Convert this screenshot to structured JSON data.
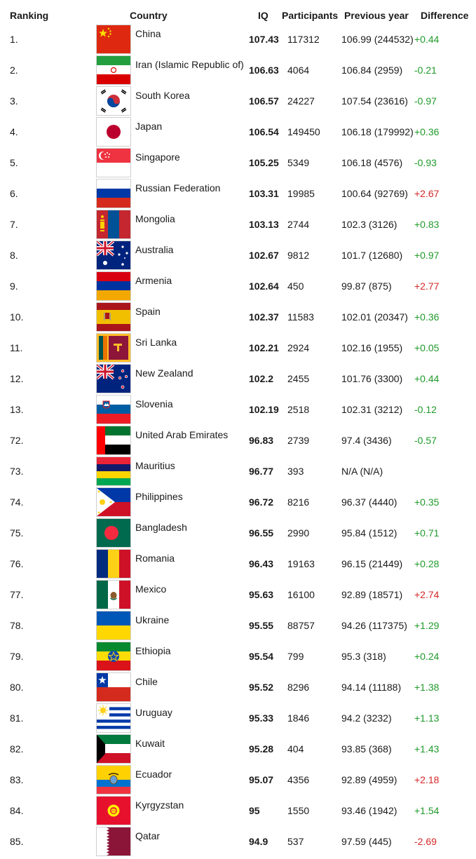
{
  "headers": {
    "ranking": "Ranking",
    "country": "Country",
    "iq": "IQ",
    "participants": "Participants",
    "previous_year": "Previous year",
    "difference": "Difference"
  },
  "colors": {
    "positive": "#1f9a2a",
    "negative": "#d62727"
  },
  "rows": [
    {
      "rank": "1.",
      "flag": "china-flag-icon",
      "country": "China",
      "iq": "107.43",
      "participants": "117312",
      "previous": "106.99 (244532)",
      "diff": "+0.44"
    },
    {
      "rank": "2.",
      "flag": "iran-flag-icon",
      "country": "Iran (Islamic Republic of)",
      "iq": "106.63",
      "participants": "4064",
      "previous": "106.84 (2959)",
      "diff": "-0.21"
    },
    {
      "rank": "3.",
      "flag": "south-korea-flag-icon",
      "country": "South Korea",
      "iq": "106.57",
      "participants": "24227",
      "previous": "107.54 (23616)",
      "diff": "-0.97"
    },
    {
      "rank": "4.",
      "flag": "japan-flag-icon",
      "country": "Japan",
      "iq": "106.54",
      "participants": "149450",
      "previous": "106.18 (179992)",
      "diff": "+0.36"
    },
    {
      "rank": "5.",
      "flag": "singapore-flag-icon",
      "country": "Singapore",
      "iq": "105.25",
      "participants": "5349",
      "previous": "106.18 (4576)",
      "diff": "-0.93"
    },
    {
      "rank": "6.",
      "flag": "russia-flag-icon",
      "country": "Russian Federation",
      "iq": "103.31",
      "participants": "19985",
      "previous": "100.64 (92769)",
      "diff": "+2.67"
    },
    {
      "rank": "7.",
      "flag": "mongolia-flag-icon",
      "country": "Mongolia",
      "iq": "103.13",
      "participants": "2744",
      "previous": "102.3 (3126)",
      "diff": "+0.83"
    },
    {
      "rank": "8.",
      "flag": "australia-flag-icon",
      "country": "Australia",
      "iq": "102.67",
      "participants": "9812",
      "previous": "101.7 (12680)",
      "diff": "+0.97"
    },
    {
      "rank": "9.",
      "flag": "armenia-flag-icon",
      "country": "Armenia",
      "iq": "102.64",
      "participants": "450",
      "previous": "99.87 (875)",
      "diff": "+2.77"
    },
    {
      "rank": "10.",
      "flag": "spain-flag-icon",
      "country": "Spain",
      "iq": "102.37",
      "participants": "11583",
      "previous": "102.01 (20347)",
      "diff": "+0.36"
    },
    {
      "rank": "11.",
      "flag": "sri-lanka-flag-icon",
      "country": "Sri Lanka",
      "iq": "102.21",
      "participants": "2924",
      "previous": "102.16 (1955)",
      "diff": "+0.05"
    },
    {
      "rank": "12.",
      "flag": "new-zealand-flag-icon",
      "country": "New Zealand",
      "iq": "102.2",
      "participants": "2455",
      "previous": "101.76 (3300)",
      "diff": "+0.44"
    },
    {
      "rank": "13.",
      "flag": "slovenia-flag-icon",
      "country": "Slovenia",
      "iq": "102.19",
      "participants": "2518",
      "previous": "102.31 (3212)",
      "diff": "-0.12"
    },
    {
      "rank": "72.",
      "flag": "uae-flag-icon",
      "country": "United Arab Emirates",
      "iq": "96.83",
      "participants": "2739",
      "previous": "97.4 (3436)",
      "diff": "-0.57"
    },
    {
      "rank": "73.",
      "flag": "mauritius-flag-icon",
      "country": "Mauritius",
      "iq": "96.77",
      "participants": "393",
      "previous": "N/A (N/A)",
      "diff": ""
    },
    {
      "rank": "74.",
      "flag": "philippines-flag-icon",
      "country": "Philippines",
      "iq": "96.72",
      "participants": "8216",
      "previous": "96.37 (4440)",
      "diff": "+0.35"
    },
    {
      "rank": "75.",
      "flag": "bangladesh-flag-icon",
      "country": "Bangladesh",
      "iq": "96.55",
      "participants": "2990",
      "previous": "95.84 (1512)",
      "diff": "+0.71"
    },
    {
      "rank": "76.",
      "flag": "romania-flag-icon",
      "country": "Romania",
      "iq": "96.43",
      "participants": "19163",
      "previous": "96.15 (21449)",
      "diff": "+0.28"
    },
    {
      "rank": "77.",
      "flag": "mexico-flag-icon",
      "country": "Mexico",
      "iq": "95.63",
      "participants": "16100",
      "previous": "92.89 (18571)",
      "diff": "+2.74"
    },
    {
      "rank": "78.",
      "flag": "ukraine-flag-icon",
      "country": "Ukraine",
      "iq": "95.55",
      "participants": "88757",
      "previous": "94.26 (117375)",
      "diff": "+1.29"
    },
    {
      "rank": "79.",
      "flag": "ethiopia-flag-icon",
      "country": "Ethiopia",
      "iq": "95.54",
      "participants": "799",
      "previous": "95.3 (318)",
      "diff": "+0.24"
    },
    {
      "rank": "80.",
      "flag": "chile-flag-icon",
      "country": "Chile",
      "iq": "95.52",
      "participants": "8296",
      "previous": "94.14 (11188)",
      "diff": "+1.38"
    },
    {
      "rank": "81.",
      "flag": "uruguay-flag-icon",
      "country": "Uruguay",
      "iq": "95.33",
      "participants": "1846",
      "previous": "94.2 (3232)",
      "diff": "+1.13"
    },
    {
      "rank": "82.",
      "flag": "kuwait-flag-icon",
      "country": "Kuwait",
      "iq": "95.28",
      "participants": "404",
      "previous": "93.85 (368)",
      "diff": "+1.43"
    },
    {
      "rank": "83.",
      "flag": "ecuador-flag-icon",
      "country": "Ecuador",
      "iq": "95.07",
      "participants": "4356",
      "previous": "92.89 (4959)",
      "diff": "+2.18"
    },
    {
      "rank": "84.",
      "flag": "kyrgyzstan-flag-icon",
      "country": "Kyrgyzstan",
      "iq": "95",
      "participants": "1550",
      "previous": "93.46 (1942)",
      "diff": "+1.54"
    },
    {
      "rank": "85.",
      "flag": "qatar-flag-icon",
      "country": "Qatar",
      "iq": "94.9",
      "participants": "537",
      "previous": "97.59 (445)",
      "diff": "-2.69"
    }
  ]
}
